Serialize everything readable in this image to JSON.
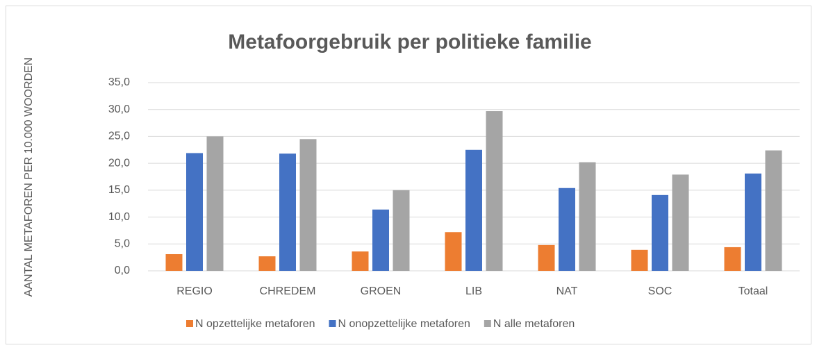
{
  "chart_data": {
    "type": "bar",
    "title": "Metafoorgebruik per politieke familie",
    "y_label": "AANTAL METAFOREN PER 10.000 WOORDEN",
    "categories": [
      "REGIO",
      "CHREDEM",
      "GROEN",
      "LIB",
      "NAT",
      "SOC",
      "Totaal"
    ],
    "series": [
      {
        "name": "N opzettelijke metaforen",
        "color": "#ed7d31",
        "values": [
          3.1,
          2.7,
          3.6,
          7.2,
          4.8,
          3.9,
          4.4
        ]
      },
      {
        "name": "N onopzettelijke metaforen",
        "color": "#4472c4",
        "values": [
          21.9,
          21.8,
          11.4,
          22.5,
          15.4,
          14.1,
          18.1
        ]
      },
      {
        "name": "N alle metaforen",
        "color": "#a5a5a5",
        "values": [
          25.0,
          24.5,
          15.0,
          29.7,
          20.2,
          17.9,
          22.4
        ]
      }
    ],
    "ylim": [
      0,
      35
    ],
    "yticks": [
      {
        "value": 0,
        "label": "0,0"
      },
      {
        "value": 5,
        "label": "5,0"
      },
      {
        "value": 10,
        "label": "10,0"
      },
      {
        "value": 15,
        "label": "15,0"
      },
      {
        "value": 20,
        "label": "20,0"
      },
      {
        "value": 25,
        "label": "25,0"
      },
      {
        "value": 30,
        "label": "30,0"
      },
      {
        "value": 35,
        "label": "35,0"
      }
    ],
    "grid": true,
    "legend": "bottom"
  }
}
